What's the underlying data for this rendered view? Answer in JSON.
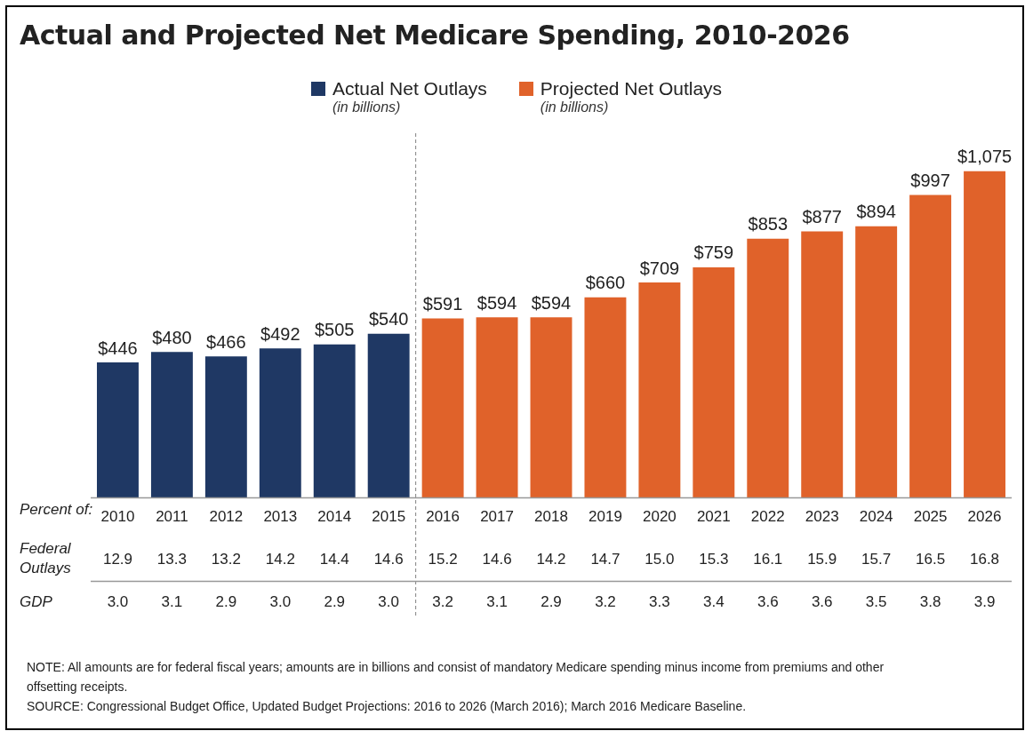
{
  "chart_data": {
    "type": "bar",
    "title": "Actual and Projected Net Medicare Spending, 2010-2026",
    "x": [
      2010,
      2011,
      2012,
      2013,
      2014,
      2015,
      2016,
      2017,
      2018,
      2019,
      2020,
      2021,
      2022,
      2023,
      2024,
      2025,
      2026
    ],
    "xlim": [
      2009.5,
      2026.5
    ],
    "xticks": [
      2010,
      2011,
      2012,
      2013,
      2014,
      2015,
      2016,
      2017,
      2018,
      2019,
      2020,
      2021,
      2022,
      2023,
      2024,
      2025,
      2026
    ],
    "stacked": true,
    "series": [
      {
        "name": "Actual Net Outlays",
        "color": "#1f3864",
        "values": [
          446,
          480,
          466,
          492,
          505,
          540,
          null,
          null,
          null,
          null,
          null,
          null,
          null,
          null,
          null,
          null,
          null
        ],
        "value_labels": [
          "$446",
          "$480",
          "$466",
          "$492",
          "$505",
          "$540",
          null,
          null,
          null,
          null,
          null,
          null,
          null,
          null,
          null,
          null,
          null
        ]
      },
      {
        "name": "Projected Net Outlays",
        "color": "#e0622a",
        "values": [
          null,
          null,
          null,
          null,
          null,
          null,
          591,
          594,
          594,
          660,
          709,
          759,
          853,
          877,
          894,
          997,
          1075
        ],
        "value_labels": [
          null,
          null,
          null,
          null,
          null,
          null,
          "$591",
          "$594",
          "$594",
          "$660",
          "$709",
          "$759",
          "$853",
          "$877",
          "$894",
          "$997",
          "$1,075"
        ]
      }
    ],
    "ref_lines": [
      {
        "axis": "x",
        "value": 2015.5,
        "line_style": "dashed",
        "color": "#808080"
      }
    ],
    "legend": "top",
    "grid": false,
    "tick_labels": "x",
    "annotations": [
      "(in billions)",
      "(in billions)",
      "Percent of:",
      "Federal Outlays",
      "GDP",
      "NOTE: All amounts are for federal fiscal years; amounts are in billions and consist of mandatory Medicare spending minus income from premiums and other offsetting receipts.",
      "SOURCE: Congressional Budget Office, Updated Budget Projections: 2016 to 2026 (March 2016); March 2016 Medicare Baseline.",
      "12.9",
      "13.3",
      "13.2",
      "14.2",
      "14.4",
      "14.6",
      "15.2",
      "14.6",
      "14.2",
      "14.7",
      "15.0",
      "15.3",
      "16.1",
      "15.9",
      "15.7",
      "16.5",
      "16.8",
      "3.0",
      "3.1",
      "2.9",
      "3.0",
      "2.9",
      "3.0",
      "3.2",
      "3.1",
      "2.9",
      "3.2",
      "3.3",
      "3.4",
      "3.6",
      "3.6",
      "3.5",
      "3.8",
      "3.9"
    ]
  }
}
